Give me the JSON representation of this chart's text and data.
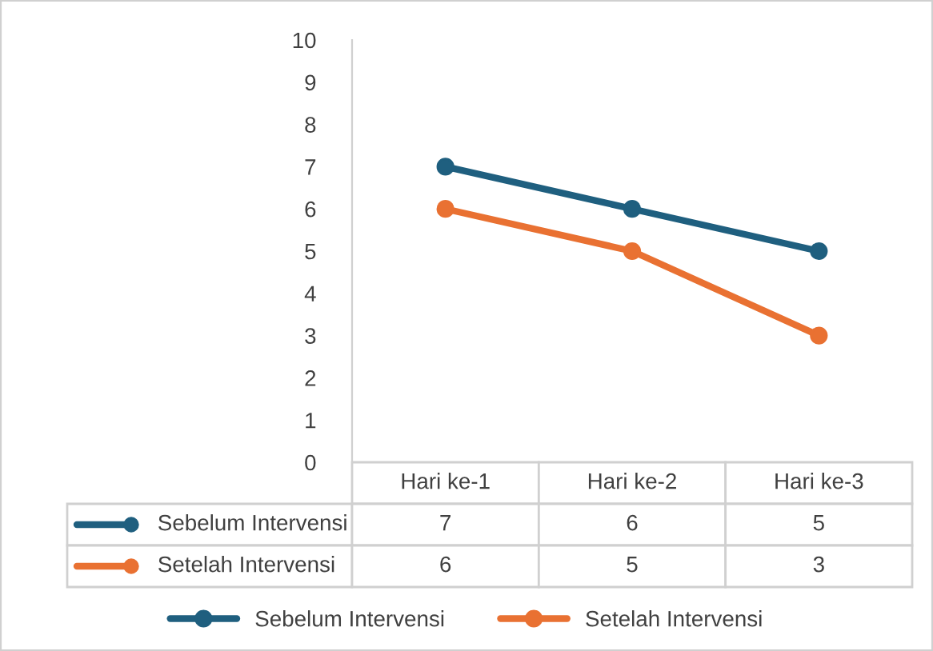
{
  "chart_data": {
    "type": "line",
    "categories": [
      "Hari ke-1",
      "Hari ke-2",
      "Hari ke-3"
    ],
    "series": [
      {
        "name": "Sebelum Intervensi",
        "color": "#1f5f7f",
        "values": [
          7,
          6,
          5
        ]
      },
      {
        "name": "Setelah Intervensi",
        "color": "#e97132",
        "values": [
          6,
          5,
          3
        ]
      }
    ],
    "ylim": [
      0,
      10
    ],
    "yticks": [
      0,
      1,
      2,
      3,
      4,
      5,
      6,
      7,
      8,
      9,
      10
    ],
    "marker": "circle",
    "line_style": "solid",
    "data_labels": true,
    "legend": "bottom",
    "grid": false
  }
}
